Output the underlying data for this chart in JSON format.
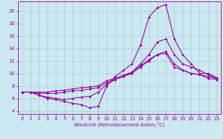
{
  "xlabel": "Windchill (Refroidissement éolien,°C)",
  "bg_color": "#cce8f0",
  "line_color": "#990099",
  "grid_color": "#aacccc",
  "xlim": [
    -0.5,
    23.5
  ],
  "ylim": [
    3.5,
    21.5
  ],
  "yticks": [
    4,
    6,
    8,
    10,
    12,
    14,
    16,
    18,
    20
  ],
  "xticks": [
    0,
    1,
    2,
    3,
    4,
    5,
    6,
    7,
    8,
    9,
    10,
    11,
    12,
    13,
    14,
    15,
    16,
    17,
    18,
    19,
    20,
    21,
    22,
    23
  ],
  "line1_x": [
    0,
    1,
    2,
    3,
    4,
    5,
    6,
    7,
    8,
    9,
    10,
    11,
    12,
    13,
    14,
    15,
    16,
    17,
    18,
    19,
    20,
    21,
    22,
    23
  ],
  "line1_y": [
    7.0,
    7.0,
    6.5,
    6.0,
    5.8,
    5.5,
    5.2,
    5.0,
    4.5,
    4.7,
    8.0,
    9.5,
    10.5,
    11.5,
    14.5,
    19.0,
    20.5,
    21.0,
    15.5,
    13.0,
    11.5,
    10.0,
    10.0,
    9.3
  ],
  "line2_x": [
    0,
    1,
    2,
    3,
    4,
    5,
    6,
    7,
    8,
    9,
    10,
    11,
    12,
    13,
    14,
    15,
    16,
    17,
    18,
    19,
    20,
    21,
    22,
    23
  ],
  "line2_y": [
    7.0,
    7.0,
    6.5,
    6.2,
    6.0,
    5.8,
    6.0,
    6.2,
    6.3,
    7.0,
    8.2,
    9.0,
    9.5,
    10.2,
    11.5,
    13.0,
    15.0,
    15.5,
    13.0,
    11.5,
    11.0,
    10.5,
    9.8,
    9.2
  ],
  "line3_x": [
    0,
    1,
    2,
    3,
    4,
    5,
    6,
    7,
    8,
    9,
    10,
    11,
    12,
    13,
    14,
    15,
    16,
    17,
    18,
    19,
    20,
    21,
    22,
    23
  ],
  "line3_y": [
    7.0,
    7.0,
    6.8,
    6.8,
    6.8,
    7.0,
    7.2,
    7.3,
    7.5,
    7.7,
    8.5,
    9.0,
    9.5,
    10.0,
    11.0,
    12.0,
    13.0,
    13.5,
    11.5,
    10.5,
    10.0,
    9.8,
    9.5,
    9.2
  ],
  "line4_x": [
    0,
    1,
    2,
    3,
    4,
    5,
    6,
    7,
    8,
    9,
    10,
    11,
    12,
    13,
    14,
    15,
    16,
    17,
    18,
    19,
    20,
    21,
    22,
    23
  ],
  "line4_y": [
    7.0,
    7.0,
    7.0,
    7.0,
    7.2,
    7.3,
    7.5,
    7.7,
    7.8,
    8.0,
    8.8,
    9.2,
    9.7,
    10.2,
    11.2,
    12.2,
    13.0,
    13.2,
    11.0,
    10.5,
    10.0,
    9.8,
    9.2,
    9.0
  ],
  "tick_fontsize": 5,
  "xlabel_fontsize": 5,
  "marker_size": 2.0,
  "linewidth": 0.8
}
